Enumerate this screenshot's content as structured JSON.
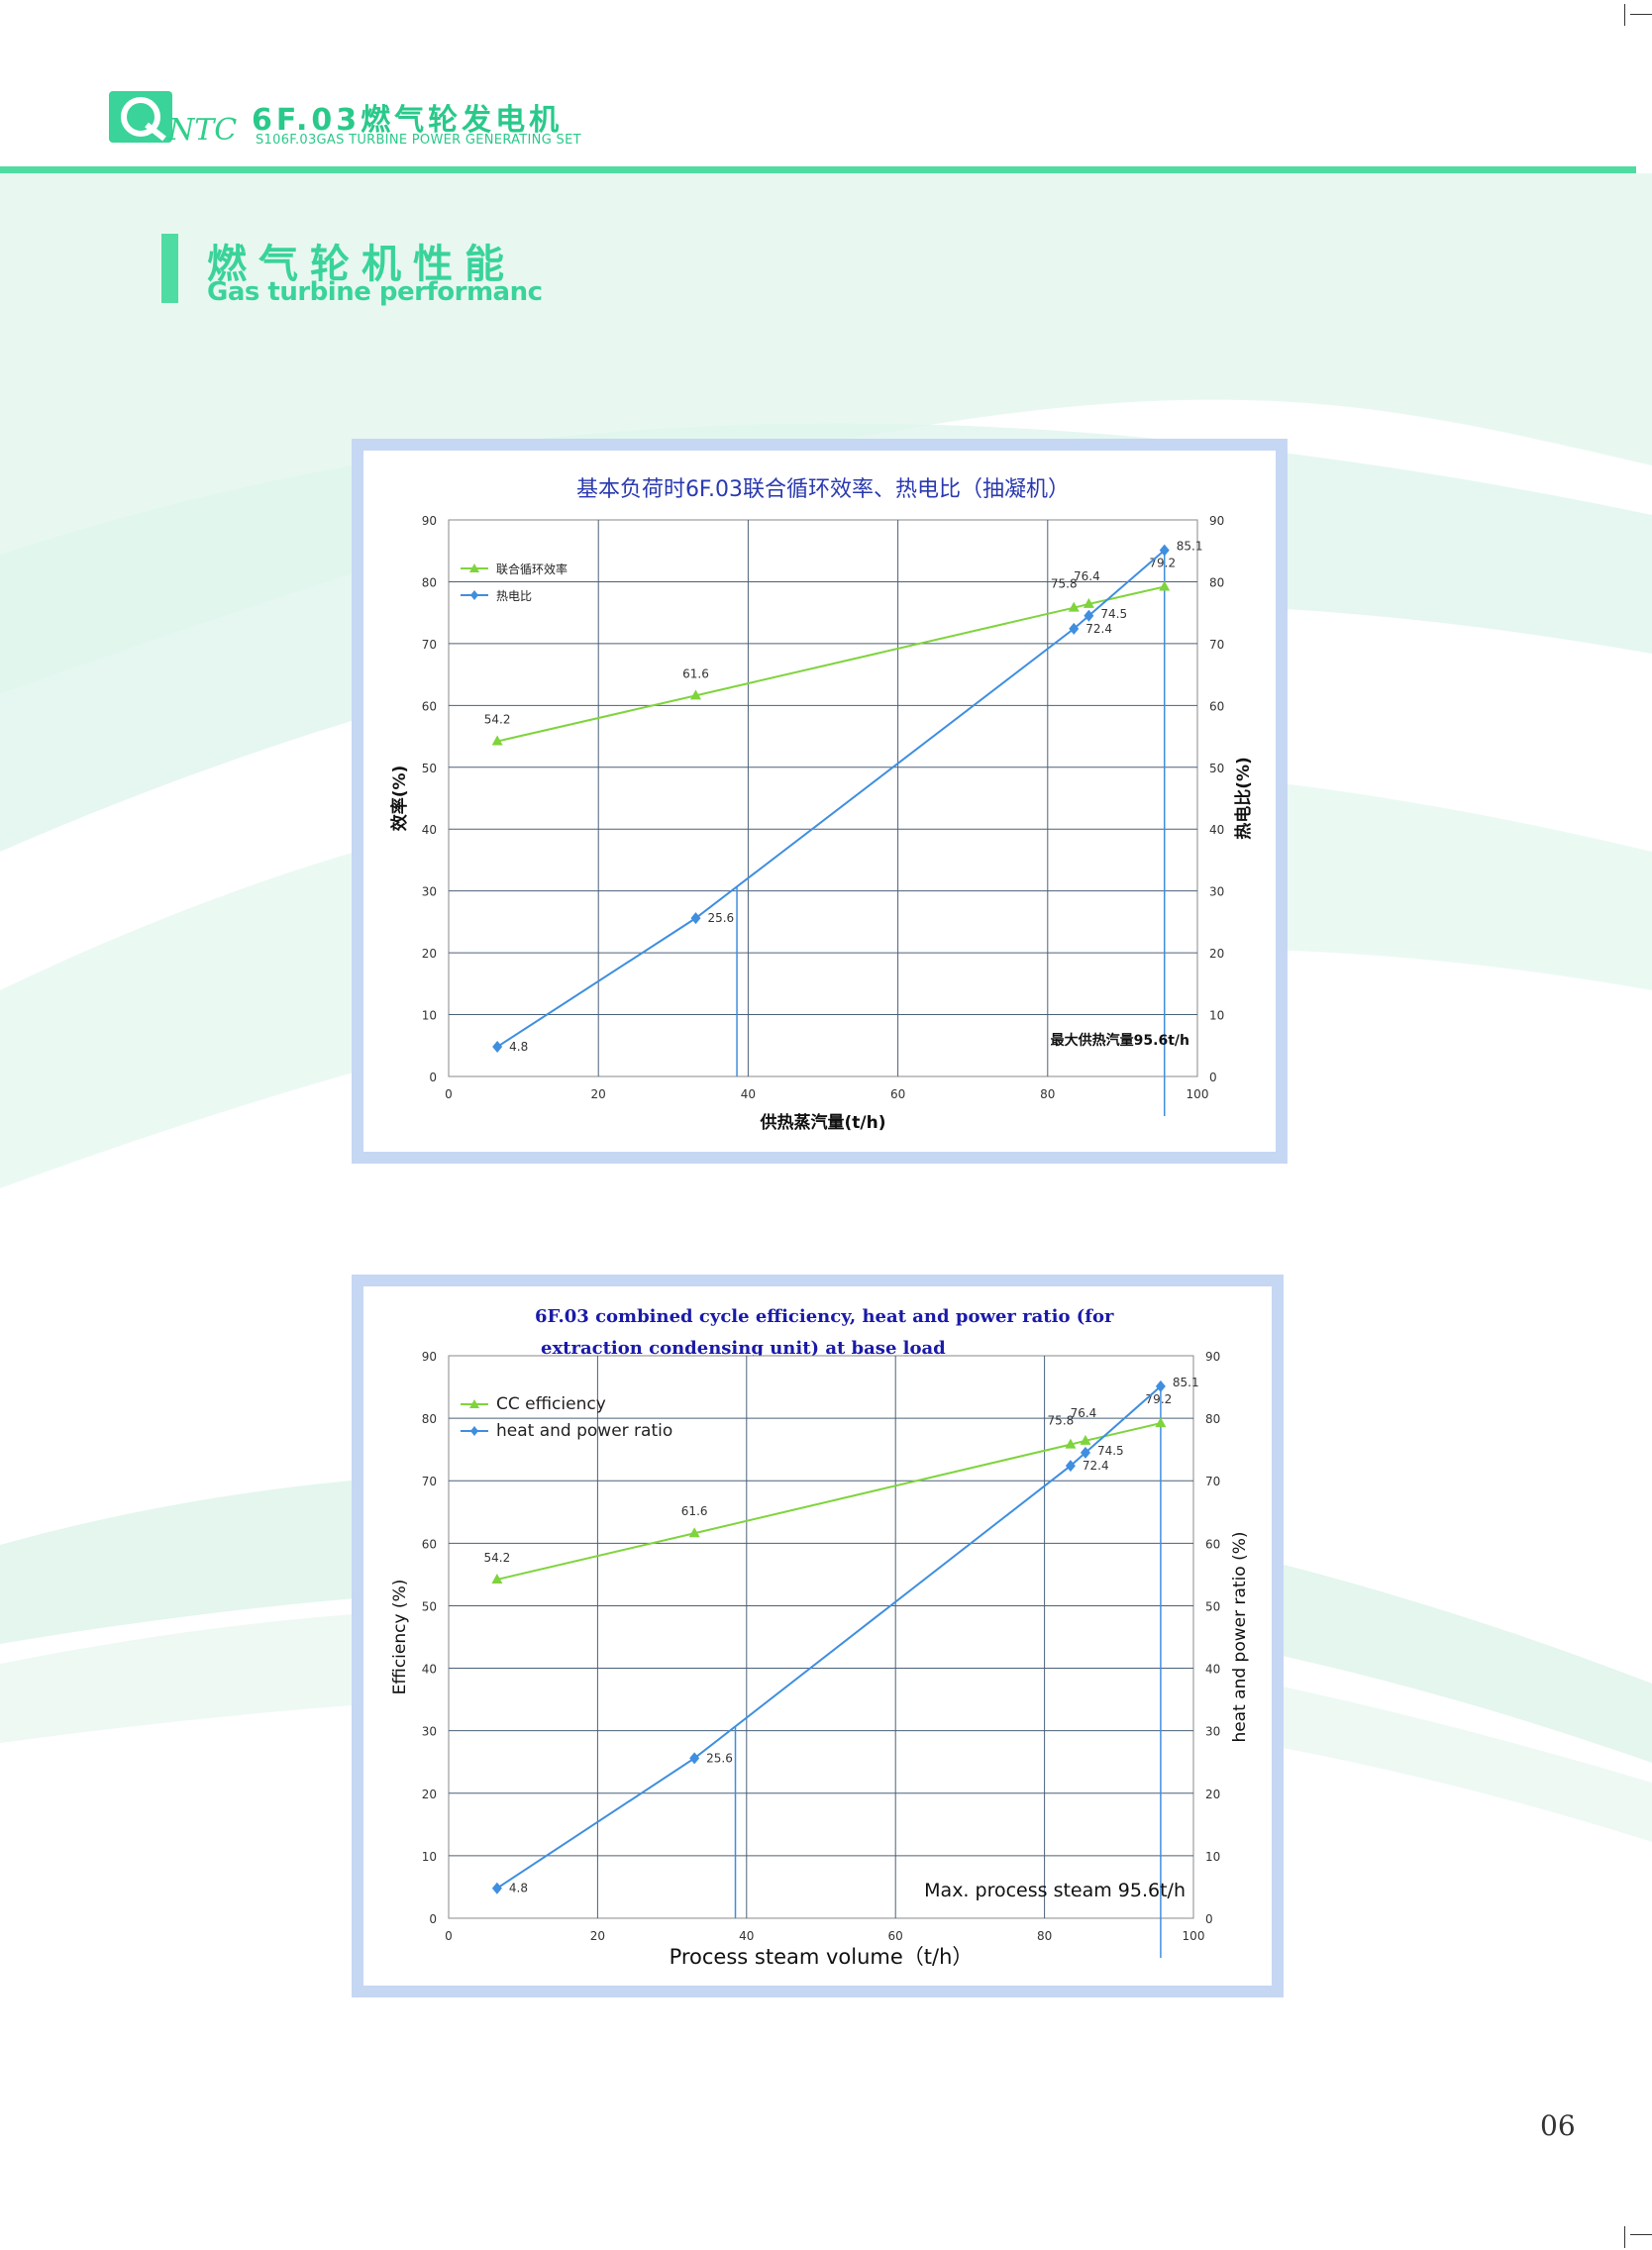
{
  "header": {
    "logo_text": "NTC",
    "title": "6F.03燃气轮发电机",
    "subtitle": "S106F.03GAS TURBINE POWER GENERATING SET"
  },
  "section": {
    "title_cn": "燃气轮机性能",
    "title_en": "Gas turbine performanc"
  },
  "page_number": "06",
  "colors": {
    "brand_green": "#3ad39a",
    "efficiency_series": "#7ed43c",
    "ratio_series": "#3f8ee0",
    "cn_title": "#2a39b0",
    "en_title": "#1a1aa8"
  },
  "chart_data": [
    {
      "type": "line",
      "title": "基本负荷时6F.03联合循环效率、热电比（抽凝机）",
      "xlabel": "供热蒸汽量(t/h)",
      "ylabel_left": "效率(%)",
      "ylabel_right": "热电比(%)",
      "xlim": [
        0,
        100
      ],
      "ylim": [
        0,
        90
      ],
      "x_ticks": [
        "0",
        "20",
        "40",
        "60",
        "80",
        "100"
      ],
      "y_ticks": [
        "0",
        "10",
        "20",
        "30",
        "40",
        "50",
        "60",
        "70",
        "80",
        "90"
      ],
      "grid": true,
      "legend_position": "top-left",
      "series": [
        {
          "name": "联合循环效率",
          "color": "#7ed43c",
          "marker": "triangle",
          "points": [
            [
              6.5,
              54.2
            ],
            [
              33,
              61.6
            ],
            [
              83.5,
              75.8
            ],
            [
              85.5,
              76.4
            ],
            [
              95.6,
              79.2
            ]
          ],
          "labels": [
            "54.2",
            "61.6",
            "75.8",
            "76.4",
            "79.2"
          ]
        },
        {
          "name": "热电比",
          "color": "#3f8ee0",
          "marker": "diamond",
          "points": [
            [
              6.5,
              4.8
            ],
            [
              33,
              25.6
            ],
            [
              83.5,
              72.4
            ],
            [
              85.5,
              74.5
            ],
            [
              95.6,
              85.1
            ]
          ],
          "labels": [
            "4.8",
            "25.6",
            "72.4",
            "74.5",
            "85.1"
          ]
        }
      ],
      "vertical_markers": [
        38.5,
        95.6
      ],
      "annotation": "最大供热汽量95.6t/h"
    },
    {
      "type": "line",
      "title_line1": "6F.03 combined cycle efficiency, heat and power ratio (for",
      "title_line2": "extraction condensing unit) at base load",
      "xlabel": "Process steam volume（t/h）",
      "ylabel_left": "Efficiency (%)",
      "ylabel_right": "heat and power ratio (%)",
      "xlim": [
        0,
        100
      ],
      "ylim": [
        0,
        90
      ],
      "x_ticks": [
        "0",
        "20",
        "40",
        "60",
        "80",
        "100"
      ],
      "y_ticks": [
        "0",
        "10",
        "20",
        "30",
        "40",
        "50",
        "60",
        "70",
        "80",
        "90"
      ],
      "grid": true,
      "legend_position": "top-left",
      "series": [
        {
          "name": "CC efficiency",
          "color": "#7ed43c",
          "marker": "triangle",
          "points": [
            [
              6.5,
              54.2
            ],
            [
              33,
              61.6
            ],
            [
              83.5,
              75.8
            ],
            [
              85.5,
              76.4
            ],
            [
              95.6,
              79.2
            ]
          ],
          "labels": [
            "54.2",
            "61.6",
            "75.8",
            "76.4",
            "79.2"
          ]
        },
        {
          "name": "heat and power ratio",
          "color": "#3f8ee0",
          "marker": "diamond",
          "points": [
            [
              6.5,
              4.8
            ],
            [
              33,
              25.6
            ],
            [
              83.5,
              72.4
            ],
            [
              85.5,
              74.5
            ],
            [
              95.6,
              85.1
            ]
          ],
          "labels": [
            "4.8",
            "25.6",
            "72.4",
            "74.5",
            "85.1"
          ]
        }
      ],
      "vertical_markers": [
        38.5,
        95.6
      ],
      "annotation": "Max. process steam 95.6t/h"
    }
  ]
}
